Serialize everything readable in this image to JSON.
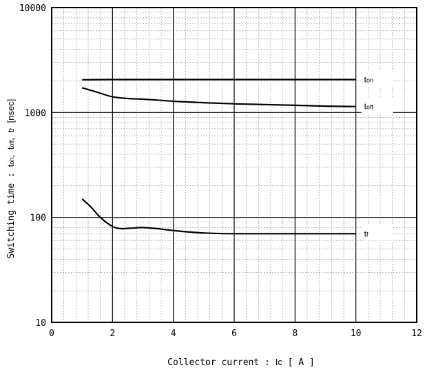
{
  "chart_data": {
    "type": "line",
    "xlabel_prefix": "Collector current :",
    "xlabel_symbol": "Ic",
    "xlabel_unit": "[ A ]",
    "ylabel_prefix": "Switching time :",
    "ylabel_symbols": [
      {
        "main": "t",
        "sub": "on"
      },
      {
        "main": "t",
        "sub": "off"
      },
      {
        "main": "t",
        "sub": "f"
      }
    ],
    "ylabel_unit": "[nsec]",
    "xlim": [
      0,
      12
    ],
    "ylim": [
      10,
      10000
    ],
    "yscale": "log",
    "grid": true,
    "x_ticks": [
      "0",
      "2",
      "4",
      "6",
      "8",
      "10",
      "12"
    ],
    "y_ticks": [
      "10",
      "100",
      "1000",
      "10000"
    ],
    "series": [
      {
        "label_main": "t",
        "label_sub": "on",
        "x": [
          1,
          2,
          4,
          6,
          8,
          10
        ],
        "y": [
          2050,
          2060,
          2060,
          2060,
          2060,
          2060
        ]
      },
      {
        "label_main": "t",
        "label_sub": "off",
        "x": [
          1,
          1.5,
          2,
          2.5,
          3,
          4,
          5,
          6,
          7,
          8,
          9,
          10
        ],
        "y": [
          1720,
          1560,
          1410,
          1360,
          1340,
          1280,
          1240,
          1210,
          1190,
          1170,
          1150,
          1140
        ]
      },
      {
        "label_main": "t",
        "label_sub": "f",
        "x": [
          1,
          1.3,
          1.6,
          2,
          2.3,
          2.6,
          3,
          3.5,
          4,
          5,
          6,
          7,
          8,
          9,
          10
        ],
        "y": [
          150,
          125,
          100,
          82,
          78,
          79,
          80,
          78,
          75,
          71,
          70,
          70,
          70,
          70,
          70
        ]
      }
    ]
  }
}
